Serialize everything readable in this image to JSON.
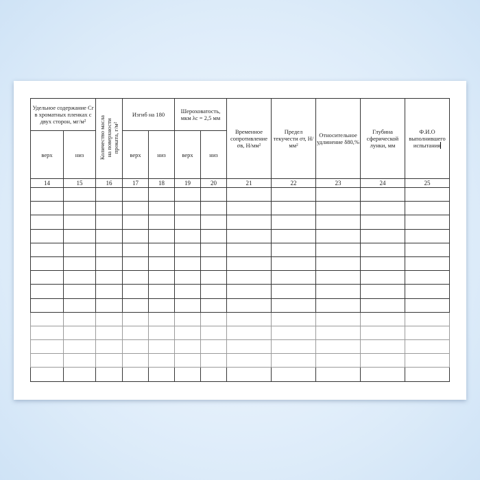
{
  "table": {
    "headers": {
      "cr_content": "Удельное содержание Cr в хроматных пленках с двух сторон, мг/м²",
      "oil_amount_lines": [
        "Количество масла",
        "на поверхности",
        "проката, г/м²"
      ],
      "bend": "Изгиб на 180",
      "roughness": "Шероховатость, мкм λc = 2,5 мм",
      "tensile_strength": "Временное сопротивление σв, Н/мм²",
      "yield_strength": "Предел текучести σт, Н/мм²",
      "elongation": "Относительное удлинение δ80,%",
      "cupping_depth": "Глубина сферической лунки, мм",
      "tester_name": "Ф.И.О выполнившего испытания",
      "top": "верх",
      "bottom": "низ"
    },
    "column_numbers": [
      "14",
      "15",
      "16",
      "17",
      "18",
      "19",
      "20",
      "21",
      "22",
      "23",
      "24",
      "25"
    ],
    "empty_row_count": 14
  }
}
